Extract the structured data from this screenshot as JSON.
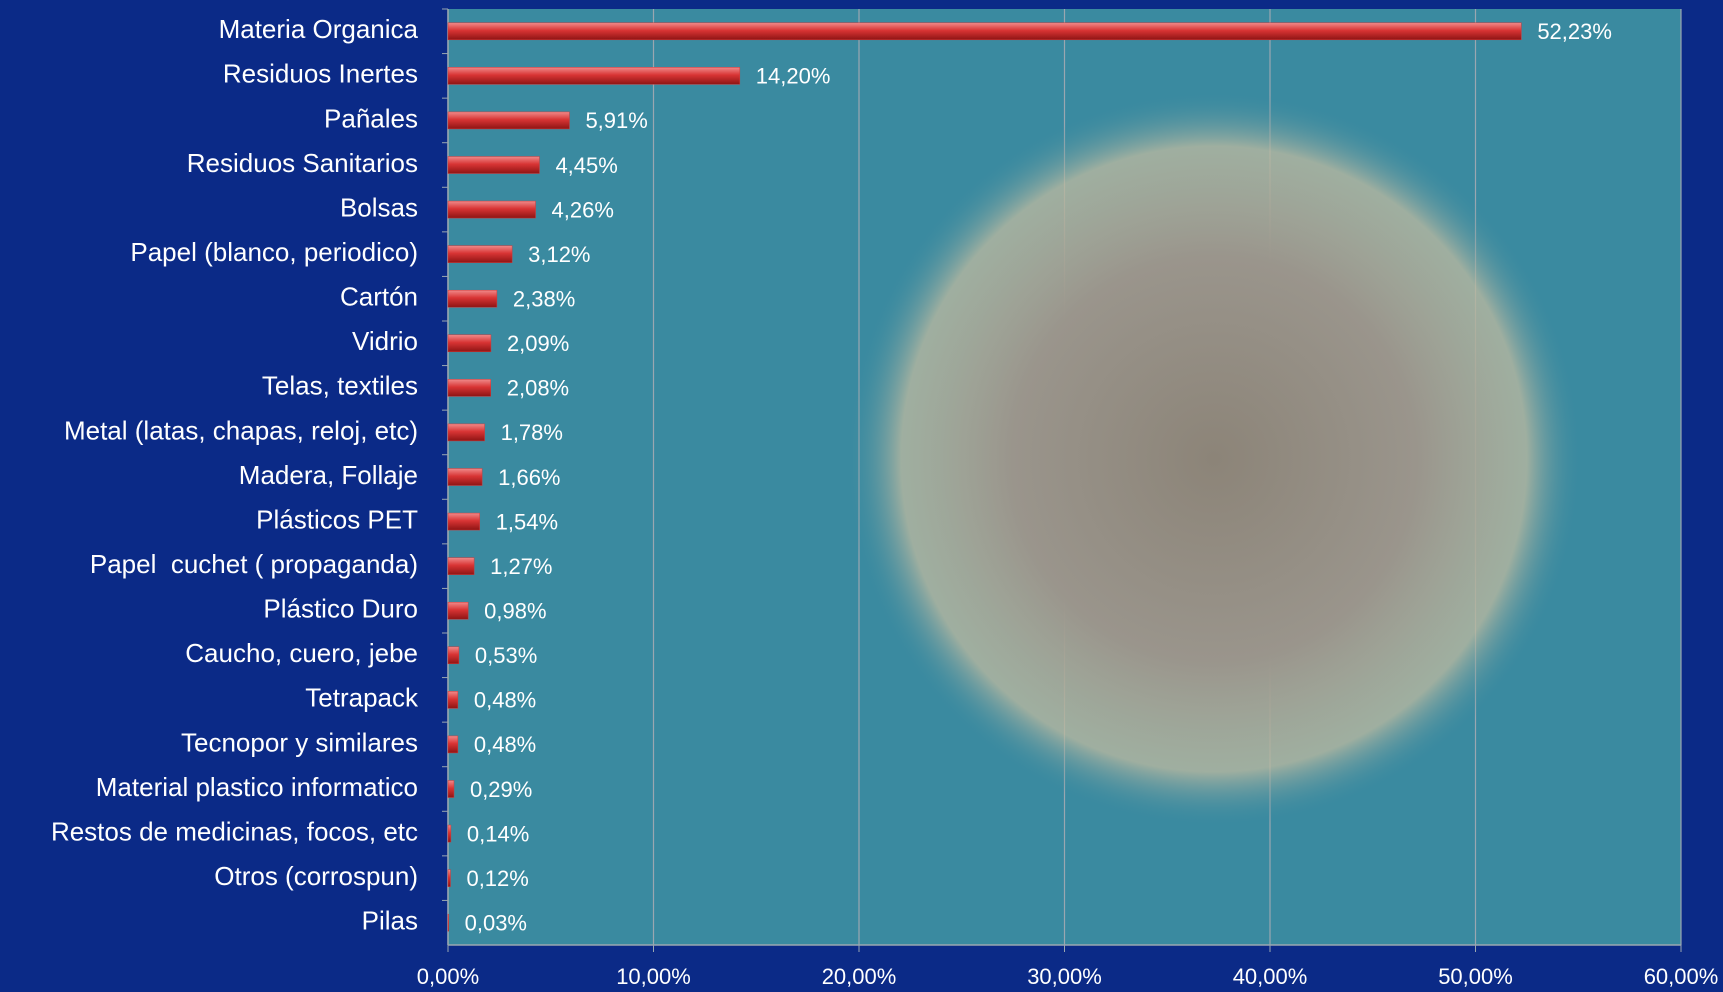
{
  "chart_data": {
    "type": "bar",
    "orientation": "horizontal",
    "categories": [
      "Materia Organica",
      "Residuos Inertes",
      "Pañales",
      "Residuos Sanitarios",
      "Bolsas",
      "Papel (blanco, periodico)",
      "Cartón",
      "Vidrio",
      "Telas, textiles",
      "Metal (latas, chapas, reloj, etc)",
      "Madera, Follaje",
      "Plásticos PET",
      "Papel  cuchet ( propaganda)",
      "Plástico Duro",
      "Caucho, cuero, jebe",
      "Tetrapack",
      "Tecnopor y similares",
      "Material plastico informatico",
      "Restos de medicinas, focos, etc",
      "Otros (corrospun)",
      "Pilas"
    ],
    "values": [
      52.23,
      14.2,
      5.91,
      4.45,
      4.26,
      3.12,
      2.38,
      2.09,
      2.08,
      1.78,
      1.66,
      1.54,
      1.27,
      0.98,
      0.53,
      0.48,
      0.48,
      0.29,
      0.14,
      0.12,
      0.03
    ],
    "value_labels": [
      "52,23%",
      "14,20%",
      "5,91%",
      "4,45%",
      "4,26%",
      "3,12%",
      "2,38%",
      "2,09%",
      "2,08%",
      "1,78%",
      "1,66%",
      "1,54%",
      "1,27%",
      "0,98%",
      "0,53%",
      "0,48%",
      "0,48%",
      "0,29%",
      "0,14%",
      "0,12%",
      "0,03%"
    ],
    "color": "#d23a3a",
    "xlim": [
      0,
      60
    ],
    "xticks": [
      {
        "value": 0,
        "label": "0,00%"
      },
      {
        "value": 10,
        "label": "10,00%"
      },
      {
        "value": 20,
        "label": "20,00%"
      },
      {
        "value": 30,
        "label": "30,00%"
      },
      {
        "value": 40,
        "label": "40,00%"
      },
      {
        "value": 50,
        "label": "50,00%"
      },
      {
        "value": 60,
        "label": "60,00%"
      }
    ],
    "grid": true
  }
}
